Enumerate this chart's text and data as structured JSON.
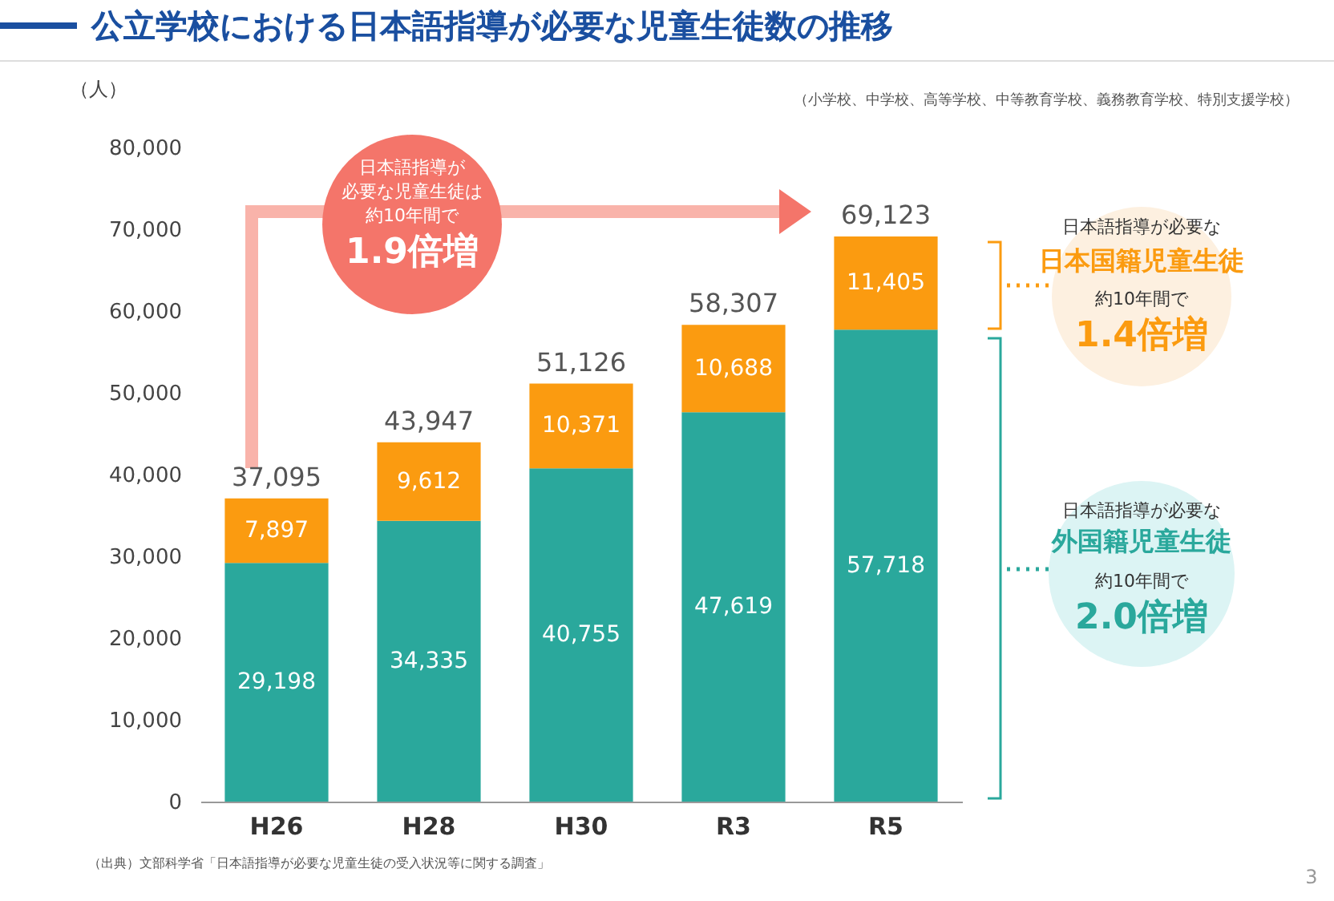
{
  "chart_data": {
    "type": "bar",
    "title": "公立学校における日本語指導が必要な児童生徒数の推移",
    "subtitle": "（小学校、中学校、高等学校、中等教育学校、義務教育学校、特別支援学校）",
    "ylabel": "（人）",
    "categories": [
      "H26",
      "H28",
      "H30",
      "R3",
      "R5"
    ],
    "series": [
      {
        "name": "外国籍児童生徒",
        "color": "#2aa89c",
        "values": [
          29198,
          34335,
          40755,
          47619,
          57718
        ],
        "value_labels": [
          "29,198",
          "34,335",
          "40,755",
          "47,619",
          "57,718"
        ]
      },
      {
        "name": "日本国籍児童生徒",
        "color": "#fb9b10",
        "values": [
          7897,
          9612,
          10371,
          10688,
          11405
        ],
        "value_labels": [
          "7,897",
          "9,612",
          "10,371",
          "10,688",
          "11,405"
        ]
      }
    ],
    "stacked": true,
    "totals": [
      "37,095",
      "43,947",
      "51,126",
      "58,307",
      "69,123"
    ],
    "ylim": [
      0,
      80000
    ],
    "yticks": [
      0,
      {
        "value": 10000,
        "label": "10,000"
      },
      {
        "value": 20000,
        "label": "20,000"
      },
      {
        "value": 30000,
        "label": "30,000"
      },
      {
        "value": 40000,
        "label": "40,000"
      },
      {
        "value": 50000,
        "label": "50,000"
      },
      {
        "value": 60000,
        "label": "60,000"
      },
      {
        "value": 70000,
        "label": "70,000"
      },
      {
        "value": 80000,
        "label": "80,000"
      }
    ],
    "grid": false,
    "annotations": [
      "日本語指導が",
      "必要な児童生徒は",
      "約10年間で",
      "1.9倍増",
      "日本語指導が必要な",
      "約10年間で",
      "1.4倍増",
      "日本語指導が必要な",
      "約10年間で",
      "2.0倍増",
      "（出典）文部科学省「日本語指導が必要な児童生徒の受入状況等に関する調査」",
      "3"
    ]
  }
}
